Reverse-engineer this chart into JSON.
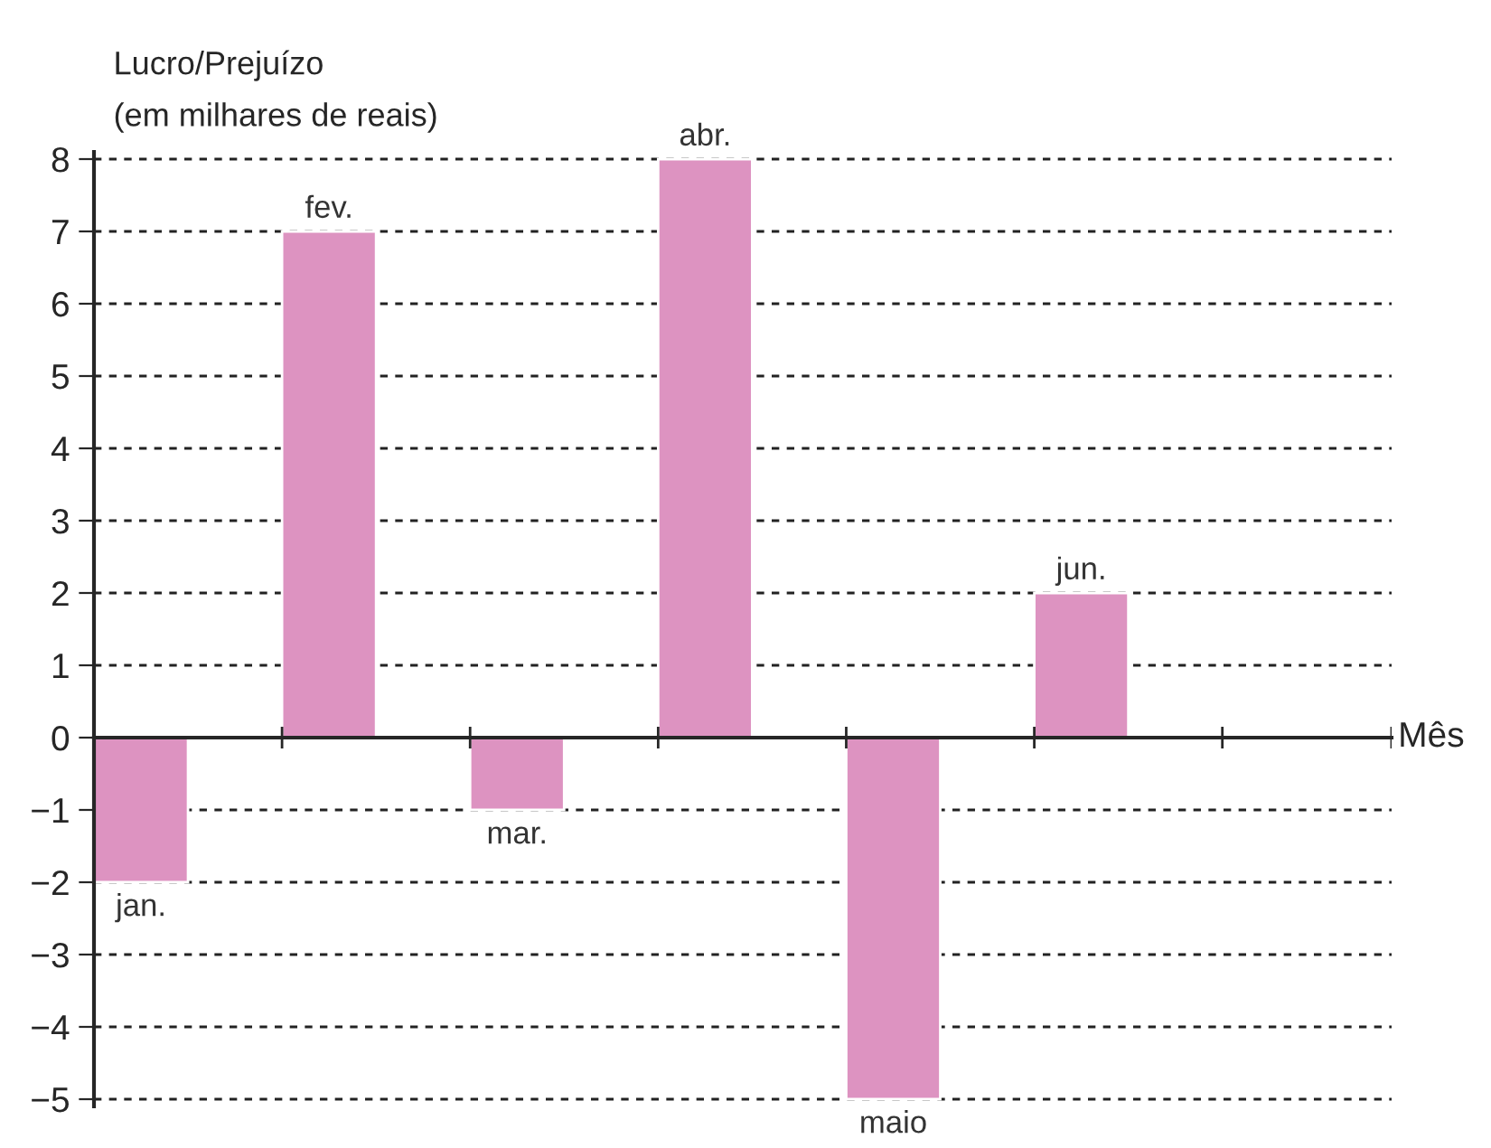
{
  "chart_data": {
    "type": "bar",
    "ylabel": "Lucro/Prejuízo\n(em milhares de reais)",
    "xlabel": "Mês",
    "categories": [
      "jan.",
      "fev.",
      "mar.",
      "abr.",
      "maio",
      "jun.",
      null
    ],
    "values": [
      -2,
      7,
      -1,
      8,
      -5,
      2,
      null
    ],
    "color": "#dd93c1",
    "ylim": [
      -5.1,
      8.1
    ],
    "yticks": [
      {
        "value": -5,
        "label": "−5"
      },
      {
        "value": -4,
        "label": "−4"
      },
      {
        "value": -3,
        "label": "−3"
      },
      {
        "value": -2,
        "label": "−2"
      },
      {
        "value": -1,
        "label": "−1"
      },
      0,
      1,
      2,
      3,
      4,
      5,
      6,
      7,
      8
    ],
    "grid": "y",
    "legend": false
  }
}
